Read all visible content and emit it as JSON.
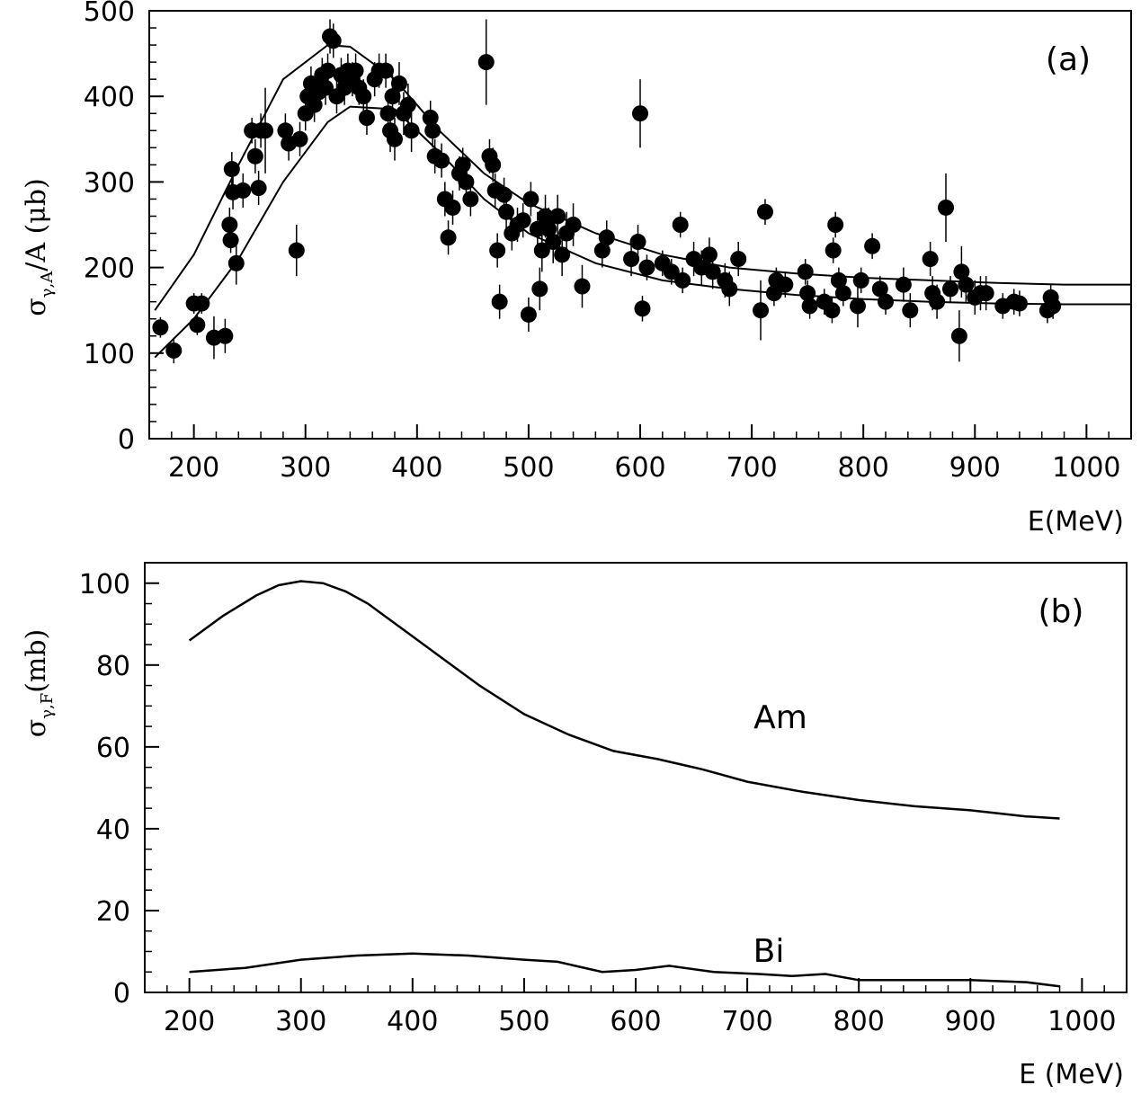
{
  "chart_data": [
    {
      "type": "scatter",
      "panel_label": "(a)",
      "ylabel": "σγ,A/A (μb)",
      "ylabel_parts": {
        "sym": "σ",
        "sub": "γ,A",
        "rest": "/A (μb)"
      },
      "xlabel": "E(MeV)",
      "xlim": [
        160,
        1040
      ],
      "ylim": [
        0,
        500
      ],
      "x_ticks": [
        200,
        300,
        400,
        500,
        600,
        700,
        800,
        900,
        1000
      ],
      "y_ticks": [
        0,
        100,
        200,
        300,
        400,
        500
      ],
      "curves": [
        {
          "name": "upper",
          "x": [
            165,
            200,
            240,
            280,
            320,
            340,
            380,
            420,
            460,
            500,
            560,
            620,
            680,
            740,
            800,
            860,
            920,
            980,
            1040
          ],
          "y": [
            150,
            215,
            320,
            420,
            460,
            458,
            420,
            360,
            310,
            275,
            240,
            215,
            200,
            193,
            188,
            185,
            182,
            180,
            180
          ]
        },
        {
          "name": "lower",
          "x": [
            165,
            200,
            240,
            280,
            320,
            340,
            380,
            420,
            460,
            500,
            560,
            620,
            680,
            740,
            800,
            860,
            920,
            980,
            1040
          ],
          "y": [
            95,
            140,
            210,
            300,
            370,
            388,
            385,
            335,
            280,
            240,
            205,
            185,
            175,
            168,
            163,
            160,
            158,
            157,
            157
          ]
        }
      ],
      "points": [
        [
          170,
          130,
          12
        ],
        [
          182,
          103,
          15
        ],
        [
          200,
          158,
          12
        ],
        [
          203,
          133,
          12
        ],
        [
          207,
          158,
          12
        ],
        [
          218,
          118,
          25
        ],
        [
          228,
          120,
          20
        ],
        [
          232,
          250,
          20
        ],
        [
          233,
          232,
          15
        ],
        [
          234,
          315,
          20
        ],
        [
          235,
          288,
          20
        ],
        [
          238,
          205,
          25
        ],
        [
          244,
          290,
          20
        ],
        [
          252,
          360,
          15
        ],
        [
          255,
          330,
          20
        ],
        [
          258,
          293,
          20
        ],
        [
          260,
          360,
          20
        ],
        [
          264,
          360,
          50
        ],
        [
          282,
          360,
          20
        ],
        [
          285,
          345,
          20
        ],
        [
          292,
          220,
          30
        ],
        [
          295,
          350,
          20
        ],
        [
          300,
          380,
          20
        ],
        [
          302,
          400,
          20
        ],
        [
          305,
          415,
          20
        ],
        [
          308,
          390,
          20
        ],
        [
          312,
          405,
          20
        ],
        [
          315,
          425,
          20
        ],
        [
          318,
          410,
          20
        ],
        [
          320,
          430,
          20
        ],
        [
          322,
          470,
          20
        ],
        [
          325,
          465,
          20
        ],
        [
          328,
          400,
          20
        ],
        [
          332,
          425,
          20
        ],
        [
          335,
          410,
          20
        ],
        [
          338,
          430,
          20
        ],
        [
          342,
          420,
          20
        ],
        [
          345,
          430,
          20
        ],
        [
          348,
          410,
          20
        ],
        [
          352,
          400,
          20
        ],
        [
          355,
          375,
          20
        ],
        [
          362,
          420,
          20
        ],
        [
          366,
          430,
          20
        ],
        [
          372,
          430,
          20
        ],
        [
          374,
          380,
          25
        ],
        [
          376,
          360,
          25
        ],
        [
          378,
          400,
          25
        ],
        [
          380,
          350,
          25
        ],
        [
          384,
          415,
          25
        ],
        [
          388,
          380,
          25
        ],
        [
          392,
          390,
          25
        ],
        [
          395,
          360,
          25
        ],
        [
          412,
          375,
          20
        ],
        [
          414,
          360,
          20
        ],
        [
          416,
          330,
          20
        ],
        [
          422,
          325,
          20
        ],
        [
          425,
          280,
          20
        ],
        [
          428,
          235,
          20
        ],
        [
          432,
          270,
          20
        ],
        [
          438,
          310,
          20
        ],
        [
          441,
          320,
          20
        ],
        [
          444,
          300,
          20
        ],
        [
          448,
          280,
          20
        ],
        [
          462,
          440,
          50
        ],
        [
          465,
          330,
          20
        ],
        [
          468,
          320,
          20
        ],
        [
          470,
          290,
          20
        ],
        [
          472,
          220,
          20
        ],
        [
          474,
          160,
          20
        ],
        [
          478,
          285,
          20
        ],
        [
          480,
          265,
          20
        ],
        [
          485,
          240,
          20
        ],
        [
          490,
          250,
          20
        ],
        [
          495,
          255,
          20
        ],
        [
          500,
          145,
          20
        ],
        [
          502,
          280,
          20
        ],
        [
          508,
          245,
          20
        ],
        [
          510,
          175,
          25
        ],
        [
          512,
          220,
          25
        ],
        [
          515,
          260,
          25
        ],
        [
          518,
          245,
          25
        ],
        [
          522,
          230,
          25
        ],
        [
          526,
          260,
          25
        ],
        [
          530,
          215,
          25
        ],
        [
          534,
          240,
          25
        ],
        [
          540,
          250,
          25
        ],
        [
          548,
          178,
          25
        ],
        [
          566,
          220,
          20
        ],
        [
          570,
          235,
          20
        ],
        [
          592,
          210,
          20
        ],
        [
          598,
          230,
          20
        ],
        [
          600,
          380,
          40
        ],
        [
          602,
          152,
          15
        ],
        [
          606,
          200,
          15
        ],
        [
          620,
          205,
          15
        ],
        [
          628,
          195,
          15
        ],
        [
          636,
          250,
          15
        ],
        [
          638,
          185,
          15
        ],
        [
          648,
          210,
          20
        ],
        [
          655,
          200,
          20
        ],
        [
          662,
          215,
          20
        ],
        [
          665,
          195,
          20
        ],
        [
          676,
          185,
          20
        ],
        [
          680,
          175,
          20
        ],
        [
          688,
          210,
          20
        ],
        [
          708,
          150,
          35
        ],
        [
          712,
          265,
          15
        ],
        [
          720,
          170,
          15
        ],
        [
          722,
          185,
          15
        ],
        [
          730,
          180,
          15
        ],
        [
          748,
          195,
          15
        ],
        [
          750,
          170,
          15
        ],
        [
          752,
          155,
          15
        ],
        [
          765,
          160,
          15
        ],
        [
          772,
          150,
          15
        ],
        [
          773,
          220,
          15
        ],
        [
          775,
          250,
          15
        ],
        [
          778,
          185,
          15
        ],
        [
          782,
          170,
          15
        ],
        [
          795,
          155,
          25
        ],
        [
          798,
          185,
          15
        ],
        [
          808,
          225,
          15
        ],
        [
          815,
          175,
          15
        ],
        [
          820,
          160,
          15
        ],
        [
          836,
          180,
          20
        ],
        [
          842,
          150,
          20
        ],
        [
          860,
          210,
          20
        ],
        [
          862,
          170,
          20
        ],
        [
          866,
          160,
          20
        ],
        [
          874,
          270,
          40
        ],
        [
          878,
          175,
          15
        ],
        [
          886,
          120,
          30
        ],
        [
          888,
          195,
          30
        ],
        [
          892,
          180,
          20
        ],
        [
          900,
          165,
          20
        ],
        [
          905,
          170,
          20
        ],
        [
          910,
          170,
          20
        ],
        [
          925,
          155,
          15
        ],
        [
          935,
          160,
          15
        ],
        [
          940,
          158,
          15
        ],
        [
          965,
          150,
          15
        ],
        [
          968,
          165,
          15
        ],
        [
          970,
          155,
          15
        ]
      ]
    },
    {
      "type": "line",
      "panel_label": "(b)",
      "ylabel": "σγ,F (mb)",
      "ylabel_parts": {
        "sym": "σ",
        "sub": "γ,F",
        "rest": "(mb)"
      },
      "xlabel": "E (MeV)",
      "xlim": [
        160,
        1040
      ],
      "ylim": [
        0,
        105
      ],
      "x_ticks": [
        200,
        300,
        400,
        500,
        600,
        700,
        800,
        900,
        1000
      ],
      "y_ticks": [
        0,
        20,
        40,
        60,
        80,
        100
      ],
      "series": [
        {
          "name": "Am",
          "x": [
            200,
            230,
            260,
            280,
            300,
            320,
            340,
            360,
            380,
            400,
            430,
            460,
            500,
            540,
            580,
            620,
            660,
            700,
            750,
            800,
            850,
            900,
            950,
            980
          ],
          "y": [
            86,
            92,
            97,
            99.5,
            100.5,
            100,
            98,
            95,
            91,
            87,
            81,
            75,
            68,
            63,
            59,
            57,
            54.5,
            51.5,
            49,
            47,
            45.5,
            44.5,
            43,
            42.5
          ]
        },
        {
          "name": "Bi",
          "x": [
            200,
            250,
            300,
            350,
            400,
            450,
            500,
            530,
            570,
            600,
            630,
            670,
            710,
            740,
            770,
            800,
            850,
            900,
            950,
            980
          ],
          "y": [
            5,
            6,
            8,
            9,
            9.5,
            9,
            8,
            7.5,
            5,
            5.5,
            6.5,
            5,
            4.5,
            4,
            4.5,
            3,
            3,
            3,
            2.5,
            1.5
          ]
        }
      ]
    }
  ]
}
